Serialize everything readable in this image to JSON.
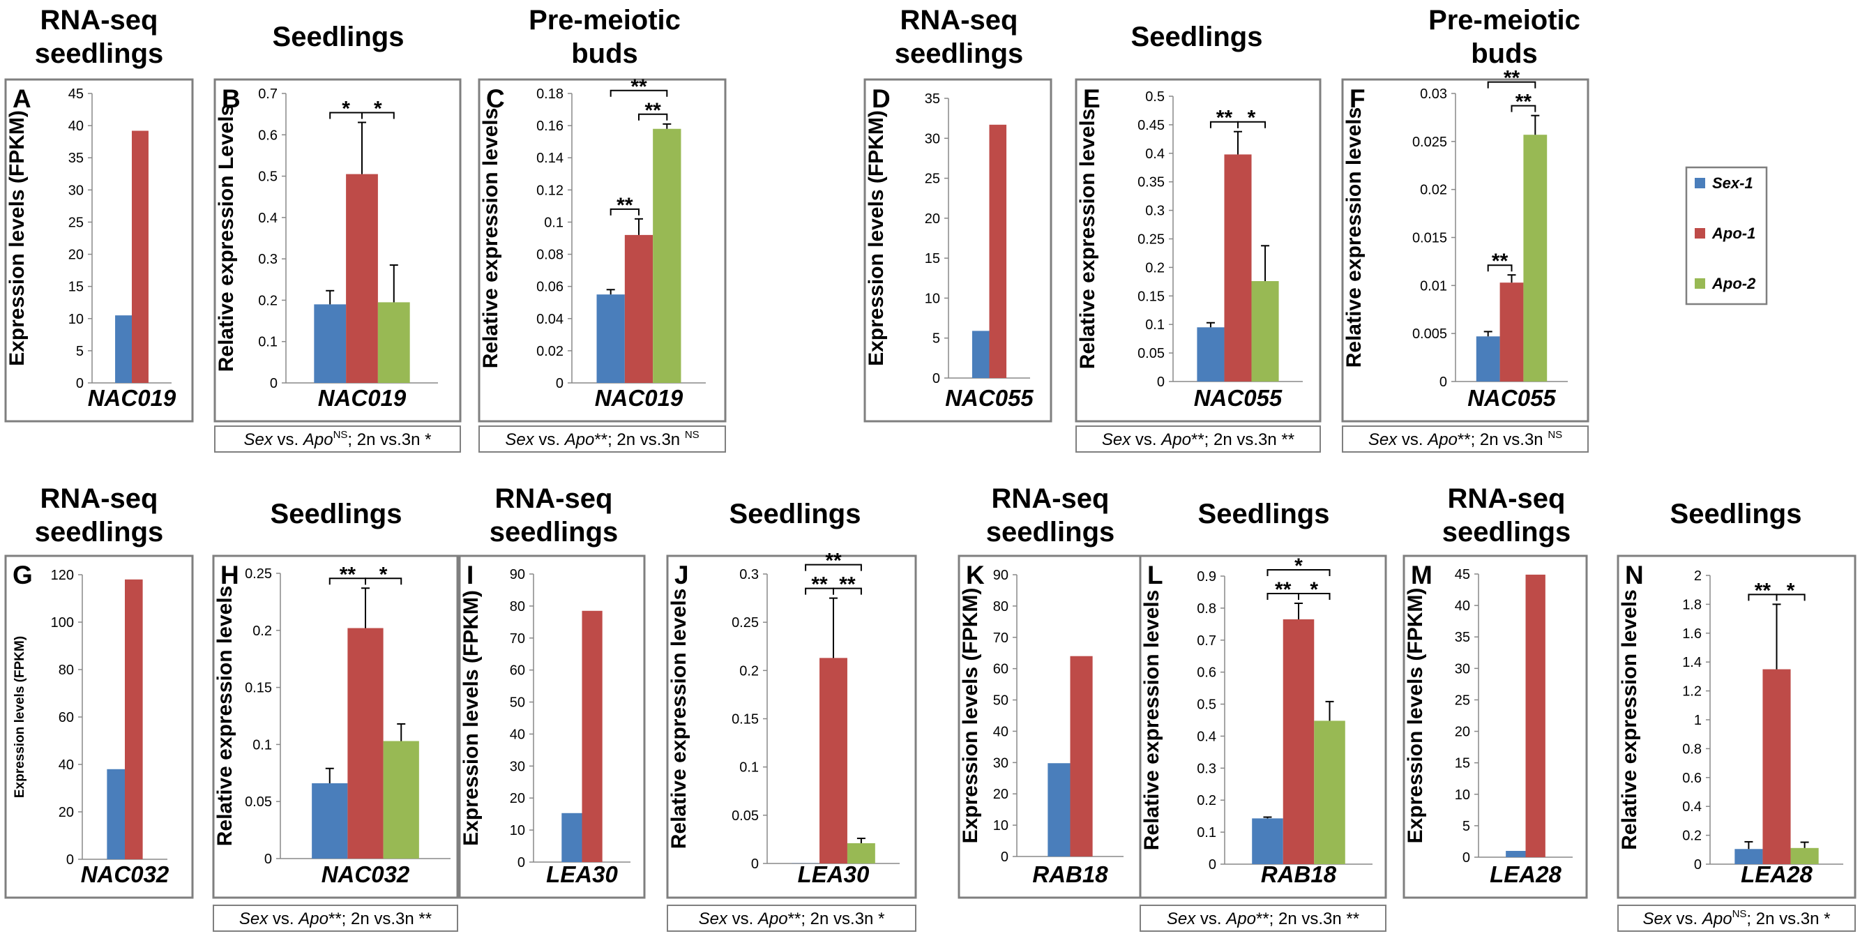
{
  "legend": [
    {
      "name": "Sex-1",
      "color": "#4a7ebb"
    },
    {
      "name": "Apo-1",
      "color": "#be4b48"
    },
    {
      "name": "Apo-2",
      "color": "#98b954"
    }
  ],
  "chart_data": [
    {
      "panel": "A",
      "type": "bar",
      "header": [
        "RNA-seq",
        "seedlings"
      ],
      "gene": "NAC019",
      "ylabel": "Expression levels (FPKM)",
      "ylim": [
        0,
        45
      ],
      "ticks": [
        0,
        5,
        10,
        15,
        20,
        25,
        30,
        35,
        40,
        45
      ],
      "tick_labels": [
        "0",
        "5",
        "10",
        "15",
        "20",
        "25",
        "30",
        "35",
        "40",
        "45"
      ],
      "series": [
        "Sex-1",
        "Apo-1"
      ],
      "values": [
        10.5,
        39.2
      ],
      "errors": [
        0,
        0
      ],
      "sig": [],
      "stats": null
    },
    {
      "panel": "B",
      "type": "bar",
      "header": [
        "Seedlings"
      ],
      "gene": "NAC019",
      "ylabel": "Relative expression Levels",
      "ylim": [
        0,
        0.7
      ],
      "ticks": [
        0,
        0.1,
        0.2,
        0.3,
        0.4,
        0.5,
        0.6,
        0.7
      ],
      "tick_labels": [
        "0",
        "0.1",
        "0.2",
        "0.3",
        "0.4",
        "0.5",
        "0.6",
        "0.7"
      ],
      "series": [
        "Sex-1",
        "Apo-1",
        "Apo-2"
      ],
      "values": [
        0.19,
        0.505,
        0.195
      ],
      "errors": [
        0.033,
        0.125,
        0.09
      ],
      "sig": [
        {
          "from": 0,
          "to": 1,
          "label": "*",
          "level": 0
        },
        {
          "from": 1,
          "to": 2,
          "label": "*",
          "level": 0
        }
      ],
      "stats": {
        "left": "Sex",
        "mid": " vs. ",
        "right": "Apo",
        "s1": "NS",
        "s1sup": true,
        "part2": "; 2n vs.3n ",
        "s2": "*",
        "s2sup": false
      }
    },
    {
      "panel": "C",
      "type": "bar",
      "header": [
        "Pre-meiotic",
        "buds"
      ],
      "gene": "NAC019",
      "ylabel": "Relative expression levels",
      "ylim": [
        0,
        0.18
      ],
      "ticks": [
        0,
        0.02,
        0.04,
        0.06,
        0.08,
        0.1,
        0.12,
        0.14,
        0.16,
        0.18
      ],
      "tick_labels": [
        "0",
        "0.02",
        "0.04",
        "0.06",
        "0.08",
        "0.1",
        "0.12",
        "0.14",
        "0.16",
        "0.18"
      ],
      "series": [
        "Sex-1",
        "Apo-1",
        "Apo-2"
      ],
      "values": [
        0.055,
        0.092,
        0.158
      ],
      "errors": [
        0.003,
        0.01,
        0.003
      ],
      "sig": [
        {
          "from": 0,
          "to": 1,
          "label": "**",
          "level": 0
        },
        {
          "from": 1,
          "to": 2,
          "label": "**",
          "level": 0
        },
        {
          "from": 0,
          "to": 2,
          "label": "**",
          "level": 1
        }
      ],
      "stats": {
        "left": "Sex",
        "mid": " vs. ",
        "right": "Apo",
        "s1": "**",
        "s1sup": false,
        "part2": "; 2n vs.3n ",
        "s2": "NS",
        "s2sup": true
      }
    },
    {
      "panel": "D",
      "type": "bar",
      "header": [
        "RNA-seq",
        "seedlings"
      ],
      "gene": "NAC055",
      "ylabel": "Expression levels (FPKM)",
      "ylim": [
        0,
        35
      ],
      "ticks": [
        0,
        5,
        10,
        15,
        20,
        25,
        30,
        35
      ],
      "tick_labels": [
        "0",
        "5",
        "10",
        "15",
        "20",
        "25",
        "30",
        "35"
      ],
      "series": [
        "Sex-1",
        "Apo-1"
      ],
      "values": [
        5.9,
        31.7
      ],
      "errors": [
        0,
        0
      ],
      "sig": [],
      "stats": null
    },
    {
      "panel": "E",
      "type": "bar",
      "header": [
        "Seedlings"
      ],
      "gene": "NAC055",
      "ylabel": "Relative expression levels",
      "ylim": [
        0,
        0.5
      ],
      "ticks": [
        0,
        0.05,
        0.1,
        0.15,
        0.2,
        0.25,
        0.3,
        0.35,
        0.4,
        0.45,
        0.5
      ],
      "tick_labels": [
        "0",
        "0.05",
        "0.1",
        "0.15",
        "0.2",
        "0.25",
        "0.3",
        "0.35",
        "0.4",
        "0.45",
        "0.5"
      ],
      "series": [
        "Sex-1",
        "Apo-1",
        "Apo-2"
      ],
      "values": [
        0.095,
        0.398,
        0.176
      ],
      "errors": [
        0.008,
        0.04,
        0.062
      ],
      "sig": [
        {
          "from": 0,
          "to": 1,
          "label": "**",
          "level": 0
        },
        {
          "from": 1,
          "to": 2,
          "label": "*",
          "level": 0
        }
      ],
      "stats": {
        "left": "Sex",
        "mid": " vs. ",
        "right": "Apo",
        "s1": "**",
        "s1sup": false,
        "part2": "; 2n vs.3n ",
        "s2": "**",
        "s2sup": false
      }
    },
    {
      "panel": "F",
      "type": "bar",
      "header": [
        "Pre-meiotic",
        "buds"
      ],
      "gene": "NAC055",
      "ylabel": "Relative expression levels",
      "ylim": [
        0,
        0.03
      ],
      "ticks": [
        0,
        0.005,
        0.01,
        0.015,
        0.02,
        0.025,
        0.03
      ],
      "tick_labels": [
        "0",
        "0.005",
        "0.01",
        "0.015",
        "0.02",
        "0.025",
        "0.03"
      ],
      "series": [
        "Sex-1",
        "Apo-1",
        "Apo-2"
      ],
      "values": [
        0.0047,
        0.0103,
        0.0257
      ],
      "errors": [
        0.0005,
        0.0008,
        0.002
      ],
      "sig": [
        {
          "from": 0,
          "to": 1,
          "label": "**",
          "level": 0
        },
        {
          "from": 1,
          "to": 2,
          "label": "**",
          "level": 0
        },
        {
          "from": 0,
          "to": 2,
          "label": "**",
          "level": 1
        }
      ],
      "stats": {
        "left": "Sex",
        "mid": " vs. ",
        "right": "Apo",
        "s1": "**",
        "s1sup": false,
        "part2": "; 2n vs.3n ",
        "s2": "NS",
        "s2sup": true
      }
    },
    {
      "panel": "G",
      "type": "bar",
      "header": [
        "RNA-seq",
        "seedlings"
      ],
      "gene": "NAC032",
      "ylabel": "Expression levels (FPKM)",
      "ylabel_small": true,
      "ylim": [
        0,
        120
      ],
      "ticks": [
        0,
        20,
        40,
        60,
        80,
        100,
        120
      ],
      "tick_labels": [
        "0",
        "20",
        "40",
        "60",
        "80",
        "100",
        "120"
      ],
      "series": [
        "Sex-1",
        "Apo-1"
      ],
      "values": [
        38,
        118
      ],
      "errors": [
        0,
        0
      ],
      "sig": [],
      "stats": null
    },
    {
      "panel": "H",
      "type": "bar",
      "header": [
        "Seedlings"
      ],
      "gene": "NAC032",
      "ylabel": "Relative expression levels",
      "ylim": [
        0,
        0.25
      ],
      "ticks": [
        0,
        0.05,
        0.1,
        0.15,
        0.2,
        0.25
      ],
      "tick_labels": [
        "0",
        "0.05",
        "0.1",
        "0.15",
        "0.2",
        "0.25"
      ],
      "series": [
        "Sex-1",
        "Apo-1",
        "Apo-2"
      ],
      "values": [
        0.066,
        0.202,
        0.103
      ],
      "errors": [
        0.013,
        0.035,
        0.015
      ],
      "sig": [
        {
          "from": 0,
          "to": 1,
          "label": "**",
          "level": 0
        },
        {
          "from": 1,
          "to": 2,
          "label": "*",
          "level": 0
        }
      ],
      "stats": {
        "left": "Sex",
        "mid": " vs. ",
        "right": "Apo",
        "s1": "**",
        "s1sup": false,
        "part2": "; 2n vs.3n ",
        "s2": "**",
        "s2sup": false
      }
    },
    {
      "panel": "I",
      "type": "bar",
      "header": [
        "RNA-seq",
        "seedlings"
      ],
      "gene": "LEA30",
      "ylabel": "Expression levels (FPKM)",
      "ylim": [
        0,
        90
      ],
      "ticks": [
        0,
        10,
        20,
        30,
        40,
        50,
        60,
        70,
        80,
        90
      ],
      "tick_labels": [
        "0",
        "10",
        "20",
        "30",
        "40",
        "50",
        "60",
        "70",
        "80",
        "90"
      ],
      "series": [
        "Sex-1",
        "Apo-1"
      ],
      "values": [
        15.3,
        78.5
      ],
      "errors": [
        0,
        0
      ],
      "sig": [],
      "stats": null
    },
    {
      "panel": "J",
      "type": "bar",
      "header": [
        "Seedlings"
      ],
      "gene": "LEA30",
      "ylabel": "Relative expression levels",
      "ylim": [
        0,
        0.3
      ],
      "ticks": [
        0,
        0.05,
        0.1,
        0.15,
        0.2,
        0.25,
        0.3
      ],
      "tick_labels": [
        "0",
        "0.05",
        "0.1",
        "0.15",
        "0.2",
        "0.25",
        "0.3"
      ],
      "series": [
        "Sex-1",
        "Apo-1",
        "Apo-2"
      ],
      "values": [
        0.0002,
        0.213,
        0.021
      ],
      "errors": [
        0,
        0.062,
        0.005
      ],
      "sig": [
        {
          "from": 0,
          "to": 1,
          "label": "**",
          "level": 0
        },
        {
          "from": 1,
          "to": 2,
          "label": "**",
          "level": 0
        },
        {
          "from": 0,
          "to": 2,
          "label": "**",
          "level": 1
        }
      ],
      "stats": {
        "left": "Sex",
        "mid": " vs. ",
        "right": "Apo",
        "s1": "**",
        "s1sup": false,
        "part2": "; 2n vs.3n ",
        "s2": "*",
        "s2sup": false
      }
    },
    {
      "panel": "K",
      "type": "bar",
      "header": [
        "RNA-seq",
        "seedlings"
      ],
      "gene": "RAB18",
      "ylabel": "Expression levels (FPKM)",
      "ylim": [
        0,
        90
      ],
      "ticks": [
        0,
        10,
        20,
        30,
        40,
        50,
        60,
        70,
        80,
        90
      ],
      "tick_labels": [
        "0",
        "10",
        "20",
        "30",
        "40",
        "50",
        "60",
        "70",
        "80",
        "90"
      ],
      "series": [
        "Sex-1",
        "Apo-1"
      ],
      "values": [
        29.8,
        64
      ],
      "errors": [
        0,
        0
      ],
      "sig": [],
      "stats": null
    },
    {
      "panel": "L",
      "type": "bar",
      "header": [
        "Seedlings"
      ],
      "gene": "RAB18",
      "ylabel": "Relative expression levels",
      "ylim": [
        0,
        0.9
      ],
      "ticks": [
        0,
        0.1,
        0.2,
        0.3,
        0.4,
        0.5,
        0.6,
        0.7,
        0.8,
        0.9
      ],
      "tick_labels": [
        "0",
        "0.1",
        "0.2",
        "0.3",
        "0.4",
        "0.5",
        "0.6",
        "0.7",
        "0.8",
        "0.9"
      ],
      "series": [
        "Sex-1",
        "Apo-1",
        "Apo-2"
      ],
      "values": [
        0.143,
        0.765,
        0.448
      ],
      "errors": [
        0.004,
        0.05,
        0.06
      ],
      "sig": [
        {
          "from": 0,
          "to": 1,
          "label": "**",
          "level": 0
        },
        {
          "from": 1,
          "to": 2,
          "label": "*",
          "level": 0
        },
        {
          "from": 0,
          "to": 2,
          "label": "*",
          "level": 1
        }
      ],
      "stats": {
        "left": "Sex",
        "mid": " vs. ",
        "right": "Apo",
        "s1": "**",
        "s1sup": false,
        "part2": "; 2n vs.3n ",
        "s2": "**",
        "s2sup": false
      }
    },
    {
      "panel": "M",
      "type": "bar",
      "header": [
        "RNA-seq",
        "seedlings"
      ],
      "gene": "LEA28",
      "ylabel": "Expression levels (FPKM)",
      "ylim": [
        0,
        45
      ],
      "ticks": [
        0,
        5,
        10,
        15,
        20,
        25,
        30,
        35,
        40,
        45
      ],
      "tick_labels": [
        "0",
        "5",
        "10",
        "15",
        "20",
        "25",
        "30",
        "35",
        "40",
        "45"
      ],
      "series": [
        "Sex-1",
        "Apo-1"
      ],
      "values": [
        1.0,
        44.9
      ],
      "errors": [
        0,
        0
      ],
      "sig": [],
      "stats": null
    },
    {
      "panel": "N",
      "type": "bar",
      "header": [
        "Seedlings"
      ],
      "gene": "LEA28",
      "ylabel": "Relative expression levels",
      "ylim": [
        0,
        2
      ],
      "ticks": [
        0,
        0.2,
        0.4,
        0.6,
        0.8,
        1,
        1.2,
        1.4,
        1.6,
        1.8,
        2
      ],
      "tick_labels": [
        "0",
        "0.2",
        "0.4",
        "0.6",
        "0.8",
        "1",
        "1.2",
        "1.4",
        "1.6",
        "1.8",
        "2"
      ],
      "series": [
        "Sex-1",
        "Apo-1",
        "Apo-2"
      ],
      "values": [
        0.105,
        1.35,
        0.112
      ],
      "errors": [
        0.05,
        0.45,
        0.04
      ],
      "sig": [
        {
          "from": 0,
          "to": 1,
          "label": "**",
          "level": 0
        },
        {
          "from": 1,
          "to": 2,
          "label": "*",
          "level": 0
        }
      ],
      "stats": {
        "left": "Sex",
        "mid": " vs. ",
        "right": "Apo",
        "s1": "NS",
        "s1sup": true,
        "part2": "; 2n vs.3n ",
        "s2": "*",
        "s2sup": false
      }
    }
  ]
}
